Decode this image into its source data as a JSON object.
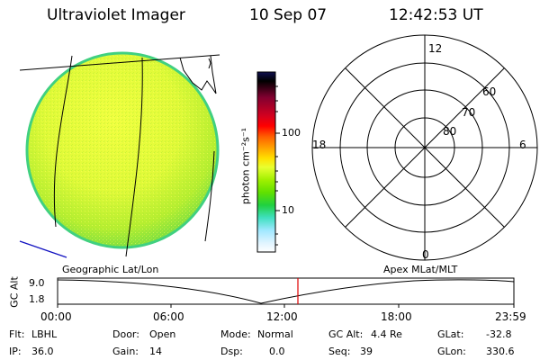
{
  "header": {
    "title": "Ultraviolet Imager",
    "date": "10 Sep 07",
    "time": "12:42:53 UT"
  },
  "colorbar": {
    "unit_label": "photon cm⁻²s⁻¹",
    "ticks": [
      "100",
      "10"
    ],
    "colors": [
      "#101050",
      "#000000",
      "#800030",
      "#d00020",
      "#ff0000",
      "#ff6000",
      "#ffa000",
      "#ffe000",
      "#e8ff30",
      "#a0f000",
      "#60e000",
      "#20d040",
      "#40e0c0",
      "#a0e8ff",
      "#e0f4ff",
      "#ffffff"
    ]
  },
  "polar": {
    "lat_labels": [
      "60",
      "70",
      "80"
    ],
    "mlt_labels": [
      "12",
      "18",
      "6",
      "0"
    ]
  },
  "orbit": {
    "alt_label": "GC Alt",
    "y_ticks": [
      "9.0",
      "1.8"
    ],
    "left_title": "Geographic Lat/Lon",
    "right_title": "Apex MLat/MLT",
    "x_ticks": [
      "00:00",
      "06:00",
      "12:00",
      "18:00",
      "23:59"
    ]
  },
  "info": {
    "row1": [
      {
        "label": "Flt:",
        "value": "LBHL"
      },
      {
        "label": "Door:",
        "value": "Open"
      },
      {
        "label": "Mode:",
        "value": "Normal"
      },
      {
        "label": "GC Alt:",
        "value": "4.4 Re"
      },
      {
        "label": "GLat:",
        "value": "-32.8"
      }
    ],
    "row2": [
      {
        "label": "IP:",
        "value": "36.0"
      },
      {
        "label": "Gain:",
        "value": "14"
      },
      {
        "label": "Dsp:",
        "value": "0.0"
      },
      {
        "label": "Seq:",
        "value": "39"
      },
      {
        "label": "GLon:",
        "value": "330.6"
      }
    ]
  }
}
